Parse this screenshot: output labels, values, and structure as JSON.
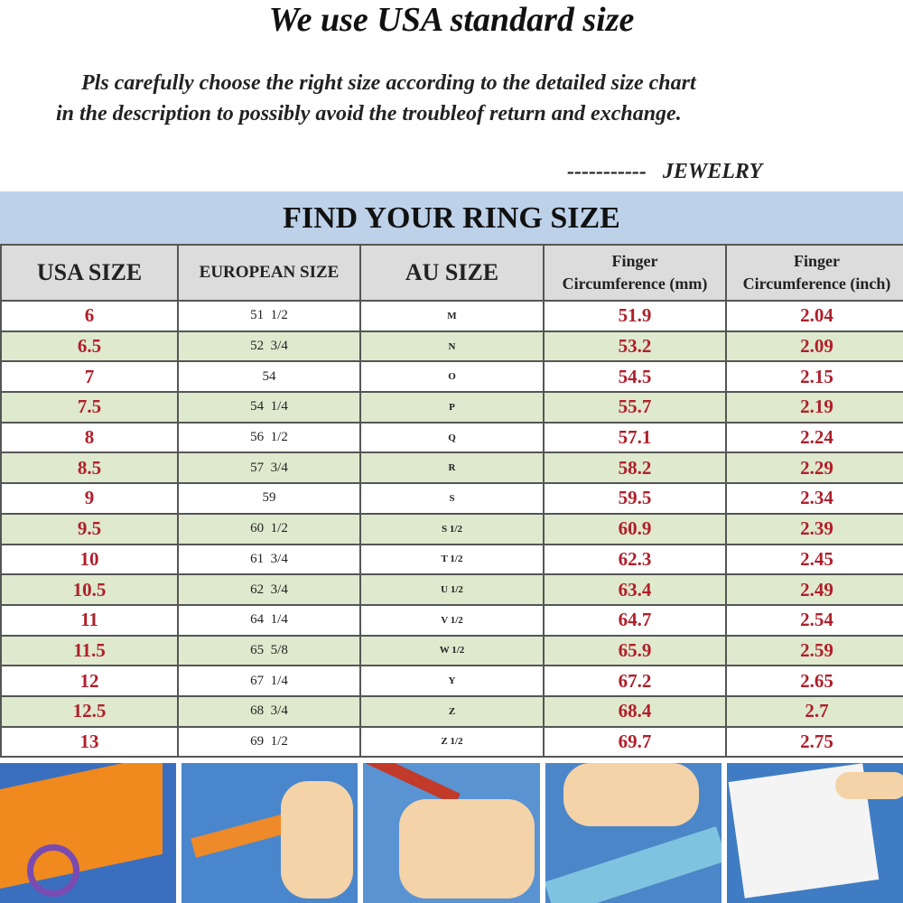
{
  "heading": "We use USA standard size",
  "notice_line1": "Pls carefully choose the right size according to the detailed size chart",
  "notice_line2": "in the description to possibly avoid the troubleof return and exchange.",
  "signature": "-----------   JEWELRY",
  "table": {
    "title": "FIND YOUR RING SIZE",
    "headers": [
      "USA SIZE",
      "EUROPEAN SIZE",
      "AU SIZE",
      "Finger Circumference (mm)",
      "Finger Circumference (inch)"
    ],
    "header_parts": {
      "finger": "Finger",
      "circ_mm": "Circumference (mm)",
      "circ_inch": "Circumference (inch)"
    },
    "rows": [
      [
        "6",
        "51  1/2",
        "M",
        "51.9",
        "2.04"
      ],
      [
        "6.5",
        "52  3/4",
        "N",
        "53.2",
        "2.09"
      ],
      [
        "7",
        "54",
        "O",
        "54.5",
        "2.15"
      ],
      [
        "7.5",
        "54  1/4",
        "P",
        "55.7",
        "2.19"
      ],
      [
        "8",
        "56  1/2",
        "Q",
        "57.1",
        "2.24"
      ],
      [
        "8.5",
        "57  3/4",
        "R",
        "58.2",
        "2.29"
      ],
      [
        "9",
        "59",
        "S",
        "59.5",
        "2.34"
      ],
      [
        "9.5",
        "60  1/2",
        "S 1/2",
        "60.9",
        "2.39"
      ],
      [
        "10",
        "61  3/4",
        "T 1/2",
        "62.3",
        "2.45"
      ],
      [
        "10.5",
        "62  3/4",
        "U 1/2",
        "63.4",
        "2.49"
      ],
      [
        "11",
        "64  1/4",
        "V 1/2",
        "64.7",
        "2.54"
      ],
      [
        "11.5",
        "65  5/8",
        "W 1/2",
        "65.9",
        "2.59"
      ],
      [
        "12",
        "67  1/4",
        "Y",
        "67.2",
        "2.65"
      ],
      [
        "12.5",
        "68  3/4",
        "Z",
        "68.4",
        "2.7"
      ],
      [
        "13",
        "69  1/2",
        "Z 1/2",
        "69.7",
        "2.75"
      ]
    ]
  },
  "colors": {
    "accent_red": "#b01f2b",
    "band_blue": "#bdd1e9",
    "row_green": "#dfe9cd",
    "header_grey": "#dcdcdc"
  },
  "photos": [
    "cut-paper-strip",
    "wrap-strip-around-finger",
    "mark-strip-with-pen",
    "measure-strip-with-ruler",
    "compare-with-size-chart"
  ]
}
